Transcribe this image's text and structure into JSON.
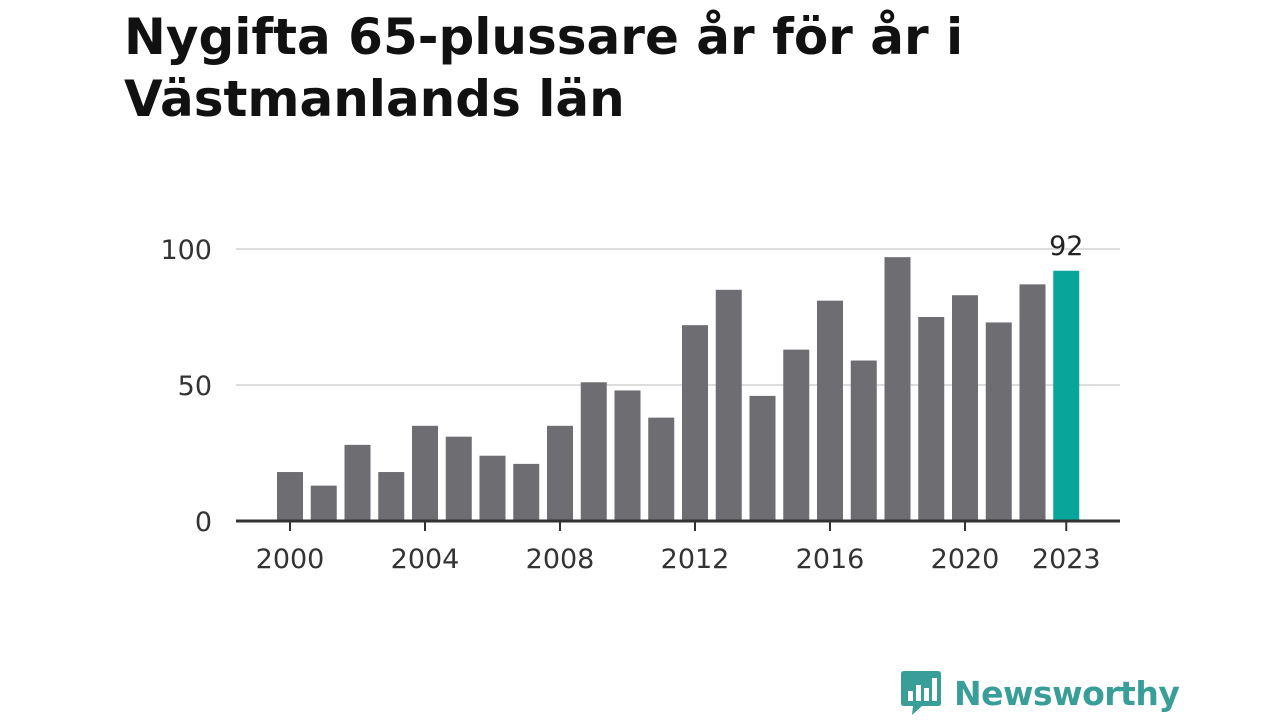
{
  "header": {
    "title_line1": "Nygifta 65-plussare år för år i",
    "title_line2": "Västmanlands län"
  },
  "colors": {
    "bar": "#6e6d72",
    "highlight": "#08a59a",
    "grid": "#dddddd",
    "axis": "#333333",
    "brand": "#3a9e98"
  },
  "chart_data": {
    "type": "bar",
    "categories": [
      "2000",
      "2001",
      "2002",
      "2003",
      "2004",
      "2005",
      "2006",
      "2007",
      "2008",
      "2009",
      "2010",
      "2011",
      "2012",
      "2013",
      "2014",
      "2015",
      "2016",
      "2017",
      "2018",
      "2019",
      "2020",
      "2021",
      "2022",
      "2023"
    ],
    "values": [
      18,
      13,
      28,
      18,
      35,
      31,
      24,
      21,
      35,
      51,
      48,
      38,
      72,
      85,
      46,
      63,
      81,
      59,
      97,
      75,
      83,
      73,
      87,
      92
    ],
    "highlight_index": 23,
    "highlight_label": "92",
    "ylim": [
      0,
      100
    ],
    "yticks": [
      0,
      50,
      100
    ],
    "xticks": [
      "2000",
      "2004",
      "2008",
      "2012",
      "2016",
      "2020",
      "2023"
    ],
    "grid": true,
    "title": "Nygifta 65-plussare år för år i Västmanlands län",
    "xlabel": "",
    "ylabel": ""
  },
  "logo": {
    "text": "Newsworthy",
    "icon": "bar-chart-speech-bubble-icon"
  }
}
